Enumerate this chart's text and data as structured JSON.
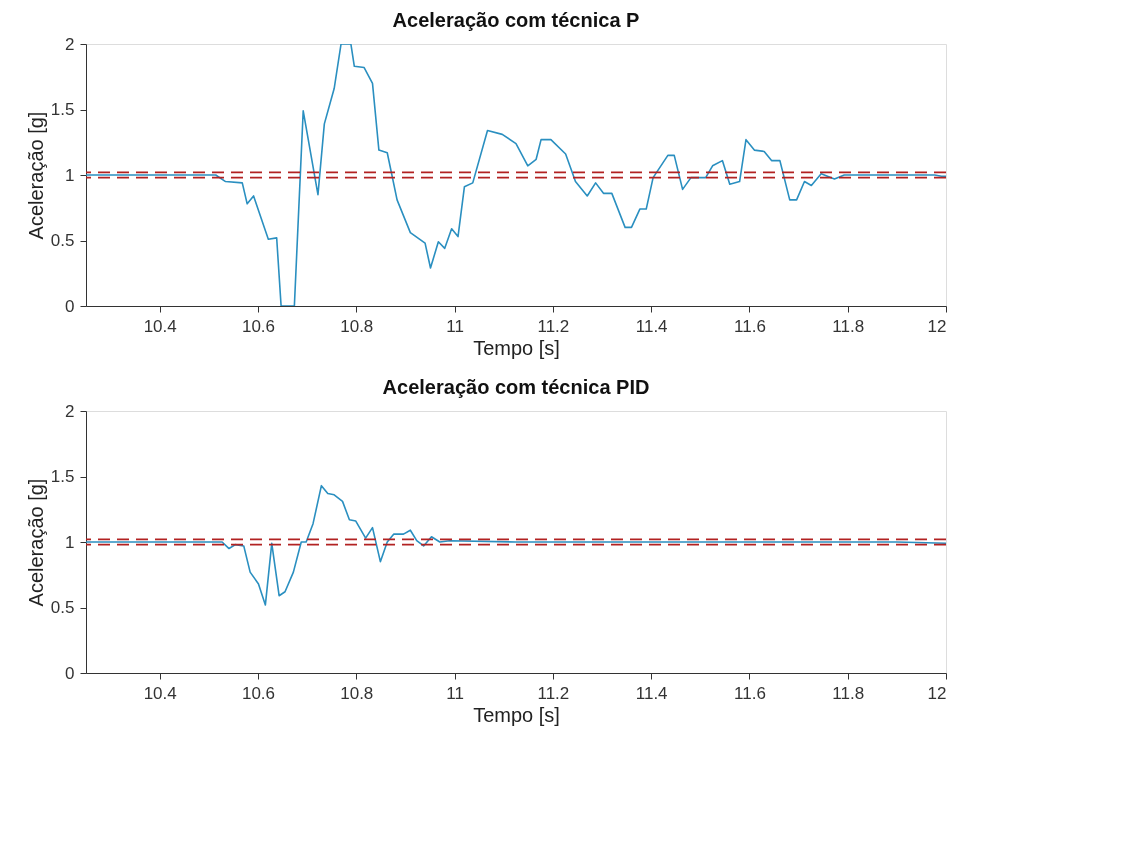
{
  "chart_data": [
    {
      "type": "line",
      "title": "Aceleração com técnica P",
      "xlabel": "Tempo [s]",
      "ylabel": "Aceleração [g]",
      "xlim": [
        10.25,
        12
      ],
      "ylim": [
        0,
        2
      ],
      "xticks": [
        10.4,
        10.6,
        10.8,
        11,
        11.2,
        11.4,
        11.6,
        11.8,
        12
      ],
      "yticks": [
        0,
        0.5,
        1,
        1.5,
        2
      ],
      "grid": false,
      "line_style": "solid",
      "marker": "none",
      "series": [
        {
          "color": "#2a8fc0",
          "x": [
            10.25,
            10.514,
            10.534,
            10.568,
            10.578,
            10.591,
            10.621,
            10.638,
            10.647,
            10.674,
            10.692,
            10.722,
            10.735,
            10.755,
            10.769,
            10.789,
            10.796,
            10.816,
            10.833,
            10.846,
            10.863,
            10.883,
            10.91,
            10.94,
            10.951,
            10.967,
            10.98,
            10.994,
            11.007,
            11.02,
            11.037,
            11.067,
            11.097,
            11.125,
            11.149,
            11.166,
            11.176,
            11.196,
            11.226,
            11.246,
            11.27,
            11.287,
            11.303,
            11.32,
            11.347,
            11.36,
            11.377,
            11.39,
            11.404,
            11.434,
            11.447,
            11.464,
            11.481,
            11.511,
            11.525,
            11.545,
            11.56,
            11.58,
            11.593,
            11.61,
            11.63,
            11.645,
            11.662,
            11.682,
            11.696,
            11.712,
            11.726,
            11.746,
            11.773,
            11.793,
            11.977,
            11.991,
            12
          ],
          "values": [
            1.0,
            1.0,
            0.95,
            0.94,
            0.78,
            0.84,
            0.51,
            0.52,
            0,
            0,
            1.49,
            0.85,
            1.39,
            1.66,
            2.0,
            2.0,
            1.83,
            1.82,
            1.7,
            1.19,
            1.17,
            0.81,
            0.56,
            0.48,
            0.29,
            0.49,
            0.44,
            0.59,
            0.53,
            0.91,
            0.94,
            1.34,
            1.31,
            1.24,
            1.07,
            1.12,
            1.27,
            1.27,
            1.16,
            0.95,
            0.84,
            0.94,
            0.86,
            0.86,
            0.6,
            0.6,
            0.74,
            0.74,
            0.98,
            1.15,
            1.15,
            0.89,
            0.98,
            0.98,
            1.07,
            1.11,
            0.93,
            0.95,
            1.27,
            1.19,
            1.18,
            1.11,
            1.11,
            0.81,
            0.81,
            0.95,
            0.92,
            1.01,
            0.97,
            1.0,
            1.0,
            0.99,
            0.99
          ]
        }
      ],
      "ref_lines": [
        {
          "axis": "y",
          "value": 1.02,
          "color": "#b22222",
          "line_style": "dashed"
        },
        {
          "axis": "y",
          "value": 0.98,
          "color": "#b22222",
          "line_style": "dashed"
        }
      ]
    },
    {
      "type": "line",
      "title": "Aceleração com técnica PID",
      "xlabel": "Tempo [s]",
      "ylabel": "Aceleração [g]",
      "xlim": [
        10.25,
        12
      ],
      "ylim": [
        0,
        2
      ],
      "xticks": [
        10.4,
        10.6,
        10.8,
        11,
        11.2,
        11.4,
        11.6,
        11.8,
        12
      ],
      "yticks": [
        0,
        0.5,
        1,
        1.5,
        2
      ],
      "grid": false,
      "line_style": "solid",
      "marker": "none",
      "series": [
        {
          "color": "#2a8fc0",
          "x": [
            10.25,
            10.527,
            10.541,
            10.554,
            10.571,
            10.584,
            10.601,
            10.615,
            10.628,
            10.643,
            10.655,
            10.672,
            10.688,
            10.698,
            10.712,
            10.729,
            10.742,
            10.755,
            10.772,
            10.786,
            10.799,
            10.819,
            10.833,
            10.849,
            10.863,
            10.876,
            10.896,
            10.91,
            10.923,
            10.937,
            10.953,
            10.97,
            10.99,
            11.124,
            11.9,
            12
          ],
          "values": [
            1.0,
            1.0,
            0.95,
            0.98,
            0.97,
            0.77,
            0.68,
            0.52,
            0.99,
            0.59,
            0.62,
            0.77,
            1.0,
            1.0,
            1.14,
            1.43,
            1.37,
            1.36,
            1.31,
            1.17,
            1.16,
            1.03,
            1.11,
            0.85,
            1.0,
            1.06,
            1.06,
            1.09,
            1.01,
            0.97,
            1.04,
            1.0,
            1.01,
            1.0,
            1.0,
            0.99
          ]
        }
      ],
      "ref_lines": [
        {
          "axis": "y",
          "value": 1.02,
          "color": "#b22222",
          "line_style": "dashed"
        },
        {
          "axis": "y",
          "value": 0.98,
          "color": "#b22222",
          "line_style": "dashed"
        }
      ]
    }
  ]
}
